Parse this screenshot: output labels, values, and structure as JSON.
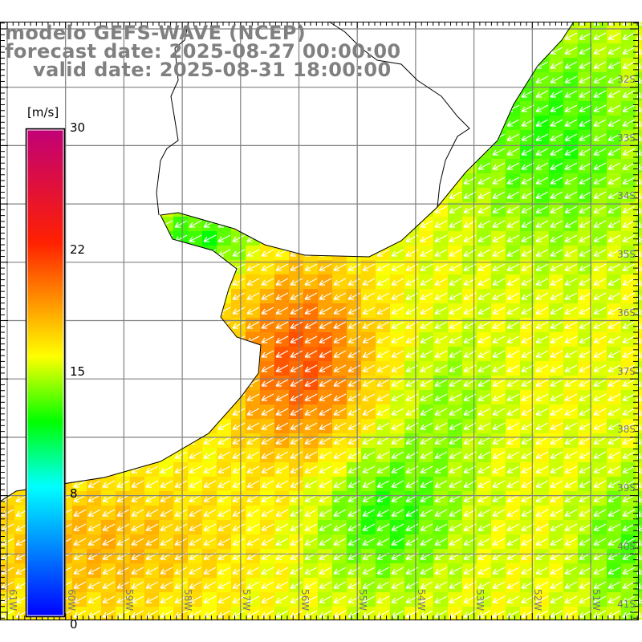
{
  "title": {
    "line1": "modelo GEFS-WAVE (NCEP)",
    "line2": "forecast date: 2025-08-27 00:00:00",
    "line3": "    valid date: 2025-08-31 18:00:00"
  },
  "colorbar": {
    "unit": "[m/s]",
    "ticks": [
      "30",
      "22",
      "15",
      "8",
      "0"
    ],
    "range": [
      0,
      30
    ],
    "stops": [
      {
        "value": 0,
        "color": "#0000ff"
      },
      {
        "value": 8,
        "color": "#00ffff"
      },
      {
        "value": 12,
        "color": "#00ff00"
      },
      {
        "value": 16,
        "color": "#ffff00"
      },
      {
        "value": 23,
        "color": "#ff2000"
      },
      {
        "value": 30,
        "color": "#c00078"
      }
    ]
  },
  "lat_labels": [
    "32S",
    "33S",
    "34S",
    "35S",
    "36S",
    "37S",
    "38S",
    "39S",
    "40S",
    "41S"
  ],
  "lon_labels": [
    "61W",
    "60W",
    "59W",
    "58W",
    "57W",
    "56W",
    "55W",
    "54W",
    "53W",
    "52W",
    "51W"
  ],
  "wind_direction": "southwest",
  "colors": {
    "land": "#ffffff",
    "grid": "#808080",
    "coast": "#000000",
    "arrow": "#ffffff"
  }
}
